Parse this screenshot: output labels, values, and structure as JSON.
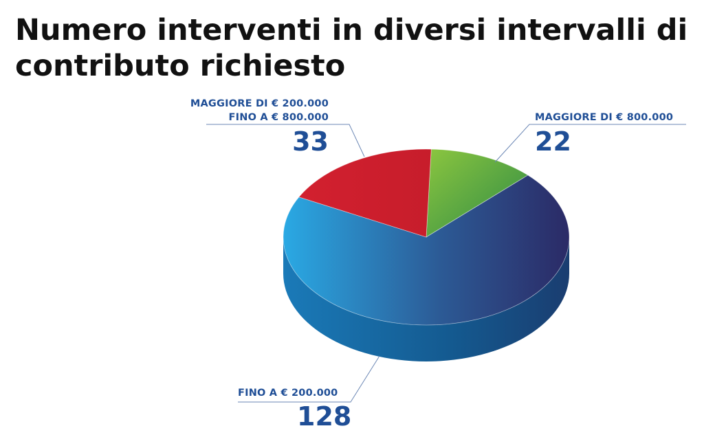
{
  "chart_data": {
    "type": "pie",
    "title": {
      "line1": "Numero interventi in diversi intervalli di",
      "line2": "contributo richiesto"
    },
    "slices": [
      {
        "label_lines": [
          "FINO A € 200.000"
        ],
        "value": 128,
        "color": "#2d8fd0"
      },
      {
        "label_lines": [
          "MAGGIORE DI € 200.000",
          "FINO A € 800.000"
        ],
        "value": 33,
        "color": "#d21f2d"
      },
      {
        "label_lines": [
          "MAGGIORE DI € 800.000"
        ],
        "value": 22,
        "color": "#5aa33b"
      }
    ]
  }
}
